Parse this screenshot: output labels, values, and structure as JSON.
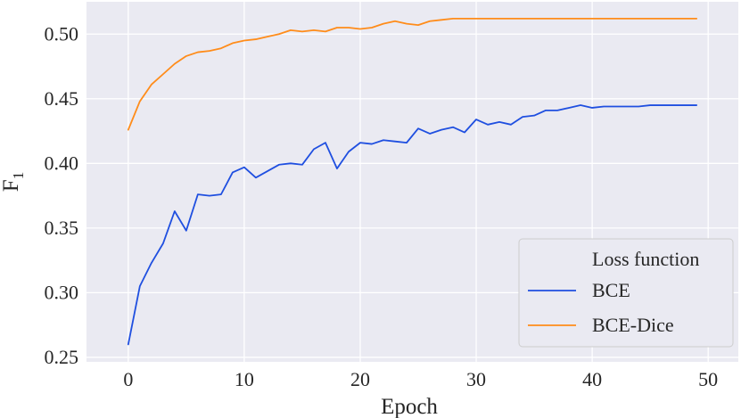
{
  "chart_data": {
    "type": "line",
    "xlabel": "Epoch",
    "ylabel": "F",
    "ylabel_subscript": "1",
    "xlim": [
      -3.6,
      52.6
    ],
    "ylim": [
      0.2465,
      0.525
    ],
    "xticks": [
      0,
      10,
      20,
      30,
      40,
      50
    ],
    "yticks": [
      0.25,
      0.3,
      0.35,
      0.4,
      0.45,
      0.5
    ],
    "ytick_labels": [
      "0.25",
      "0.30",
      "0.35",
      "0.40",
      "0.45",
      "0.50"
    ],
    "grid": true,
    "background": "#eaeaf2",
    "legend": {
      "title": "Loss function",
      "placement": "lower-right"
    },
    "series": [
      {
        "name": "BCE",
        "color": "#1f4fe0",
        "x": [
          0,
          1,
          2,
          3,
          4,
          5,
          6,
          7,
          8,
          9,
          10,
          11,
          12,
          13,
          14,
          15,
          16,
          17,
          18,
          19,
          20,
          21,
          22,
          23,
          24,
          25,
          26,
          27,
          28,
          29,
          30,
          31,
          32,
          33,
          34,
          35,
          36,
          37,
          38,
          39,
          40,
          41,
          42,
          43,
          44,
          45,
          46,
          47,
          48,
          49
        ],
        "values": [
          0.26,
          0.305,
          0.323,
          0.338,
          0.363,
          0.348,
          0.376,
          0.375,
          0.376,
          0.393,
          0.397,
          0.389,
          0.394,
          0.399,
          0.4,
          0.399,
          0.411,
          0.416,
          0.396,
          0.409,
          0.416,
          0.415,
          0.418,
          0.417,
          0.416,
          0.427,
          0.423,
          0.426,
          0.428,
          0.424,
          0.434,
          0.43,
          0.432,
          0.43,
          0.436,
          0.437,
          0.441,
          0.441,
          0.443,
          0.445,
          0.443,
          0.444,
          0.444,
          0.444,
          0.444,
          0.445,
          0.445,
          0.445,
          0.445,
          0.445
        ]
      },
      {
        "name": "BCE-Dice",
        "color": "#ff8c1a",
        "x": [
          0,
          1,
          2,
          3,
          4,
          5,
          6,
          7,
          8,
          9,
          10,
          11,
          12,
          13,
          14,
          15,
          16,
          17,
          18,
          19,
          20,
          21,
          22,
          23,
          24,
          25,
          26,
          27,
          28,
          29,
          30,
          31,
          32,
          33,
          34,
          35,
          36,
          37,
          38,
          39,
          40,
          41,
          42,
          43,
          44,
          45,
          46,
          47,
          48,
          49
        ],
        "values": [
          0.426,
          0.448,
          0.461,
          0.469,
          0.477,
          0.483,
          0.486,
          0.487,
          0.489,
          0.493,
          0.495,
          0.496,
          0.498,
          0.5,
          0.503,
          0.502,
          0.503,
          0.502,
          0.505,
          0.505,
          0.504,
          0.505,
          0.508,
          0.51,
          0.508,
          0.507,
          0.51,
          0.511,
          0.512,
          0.512,
          0.512,
          0.512,
          0.512,
          0.512,
          0.512,
          0.512,
          0.512,
          0.512,
          0.512,
          0.512,
          0.512,
          0.512,
          0.512,
          0.512,
          0.512,
          0.512,
          0.512,
          0.512,
          0.512,
          0.512
        ]
      }
    ]
  }
}
